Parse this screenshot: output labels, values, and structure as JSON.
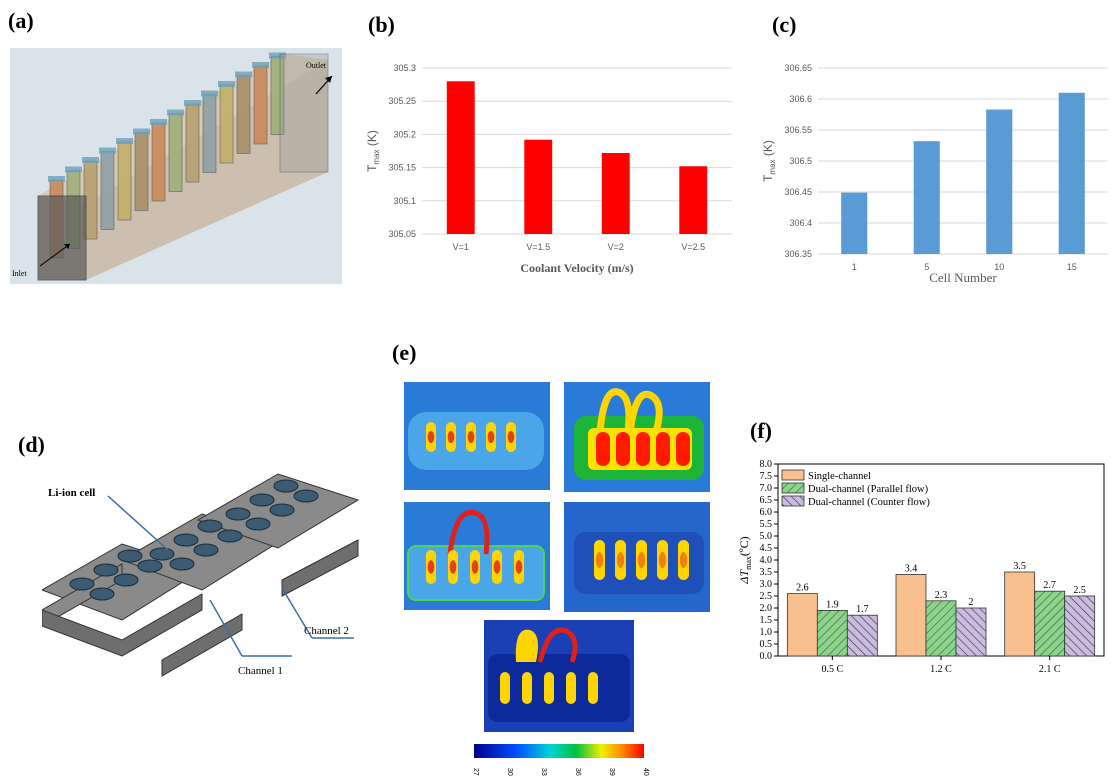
{
  "panels": {
    "a": {
      "label": "(a)",
      "outlet_label": "Outlet",
      "inlet_label": "Inlet"
    },
    "b": {
      "label": "(b)"
    },
    "c": {
      "label": "(c)"
    },
    "d": {
      "label": "(d)",
      "cell_label": "Li-ion cell",
      "channel1_label": "Channel 1",
      "channel2_label": "Channel 2"
    },
    "e": {
      "label": "(e)",
      "colorbar_ticks": [
        "27",
        "30",
        "33",
        "36",
        "39",
        "40"
      ]
    },
    "f": {
      "label": "(f)"
    }
  },
  "chart_data": [
    {
      "id": "b",
      "type": "bar",
      "categories": [
        "V=1",
        "V=1.5",
        "V=2",
        "V=2.5"
      ],
      "values": [
        305.28,
        305.192,
        305.172,
        305.152
      ],
      "xlabel": "Coolant Velocity (m/s)",
      "ylabel_main": "T",
      "ylabel_sub": "max",
      "ylabel_unit": " (K)",
      "ylim": [
        305.05,
        305.3
      ],
      "yticks": [
        "305.05",
        "305.1",
        "305.15",
        "305.2",
        "305.25",
        "305.3"
      ],
      "color": "#ff0000",
      "grid": true
    },
    {
      "id": "c",
      "type": "bar",
      "categories": [
        "1",
        "5",
        "10",
        "15"
      ],
      "values": [
        306.449,
        306.532,
        306.583,
        306.61
      ],
      "xlabel": "Cell Number",
      "ylabel_main": "T",
      "ylabel_sub": "max",
      "ylabel_unit": " (K)",
      "ylim": [
        306.35,
        306.65
      ],
      "yticks": [
        "306.35",
        "306.4",
        "306.45",
        "306.5",
        "306.55",
        "306.6",
        "306.65"
      ],
      "color": "#5b9bd5",
      "grid": true
    },
    {
      "id": "f",
      "type": "bar",
      "categories": [
        "0.5 C",
        "1.2 C",
        "2.1 C"
      ],
      "series": [
        {
          "name": "Single-channel",
          "values": [
            2.6,
            3.4,
            3.5
          ],
          "color": "#f9c08f"
        },
        {
          "name": "Dual-channel (Parallel flow)",
          "values": [
            1.9,
            2.3,
            2.7
          ],
          "color": "#7fc97f"
        },
        {
          "name": "Dual-channel (Counter flow)",
          "values": [
            1.7,
            2.0,
            2.5
          ],
          "color": "#b3a3c9"
        }
      ],
      "data_labels": [
        [
          "2.6",
          "3.4",
          "3.5"
        ],
        [
          "1.9",
          "2.3",
          "2.7"
        ],
        [
          "1.7",
          "2",
          "2.5"
        ]
      ],
      "ylabel_main": "ΔT",
      "ylabel_sub": "max",
      "ylabel_unit": "(ºC)",
      "ylim": [
        0,
        8
      ],
      "yticks": [
        "0.0",
        "0.5",
        "1.0",
        "1.5",
        "2.0",
        "2.5",
        "3.0",
        "3.5",
        "4.0",
        "4.5",
        "5.0",
        "5.5",
        "6.0",
        "6.5",
        "7.0",
        "7.5",
        "8.0"
      ],
      "legend": "top-left"
    }
  ]
}
